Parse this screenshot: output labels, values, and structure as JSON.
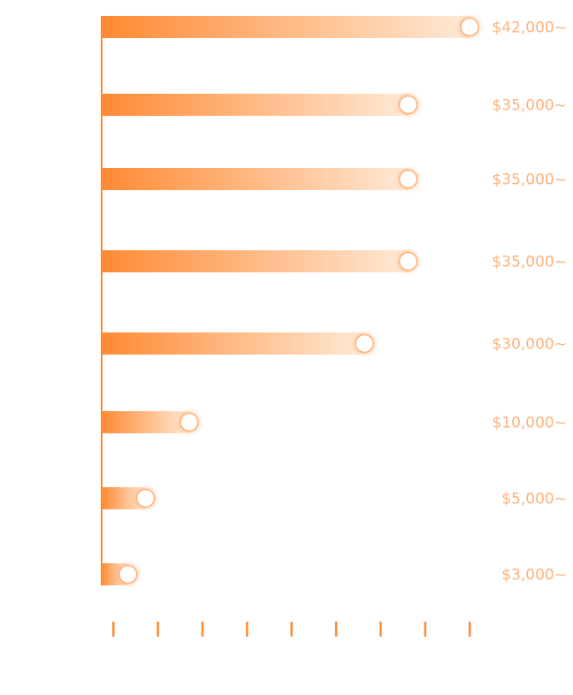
{
  "chart_data": {
    "type": "bar",
    "orientation": "horizontal",
    "categories": [
      "",
      "",
      "",
      "",
      "",
      "",
      "",
      ""
    ],
    "values": [
      42000,
      35000,
      35000,
      35000,
      30000,
      10000,
      5000,
      3000
    ],
    "value_labels": [
      "$42,000~",
      "$35,000~",
      "$35,000~",
      "$35,000~",
      "$30,000~",
      "$10,000~",
      "$5,000~",
      "$3,000~"
    ],
    "title": "",
    "xlabel": "",
    "ylabel": "",
    "xlim": [
      0,
      42000
    ],
    "x_tick_count": 9,
    "grid": false,
    "legend": "none"
  },
  "colors": {
    "accent": "#ff8a33",
    "bar_fade": "#ffe9d6",
    "label": "#ffb27a",
    "knob_fill": "#ffffff",
    "knob_stroke": "#ffb27a"
  }
}
